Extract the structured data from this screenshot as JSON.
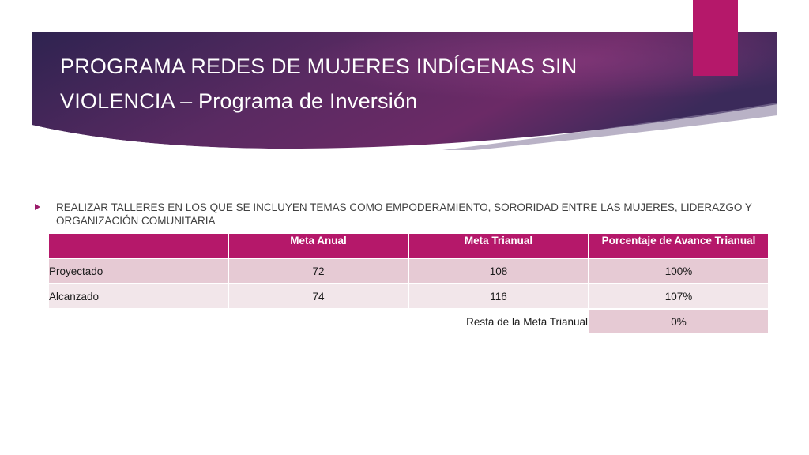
{
  "title": {
    "line1": "PROGRAMA REDES DE MUJERES INDÍGENAS SIN",
    "line2_part1": "VIOLENCIA",
    "line2_dash": "–",
    "line2_part2": "Programa de Inversión"
  },
  "bullet": {
    "text": "REALIZAR TALLERES EN LOS QUE SE INCLUYEN TEMAS COMO EMPODERAMIENTO, SORORIDAD ENTRE LAS MUJERES, LIDERAZGO Y ORGANIZACIÓN COMUNITARIA"
  },
  "table": {
    "headers": [
      "",
      "Meta Anual",
      "Meta Trianual",
      "Porcentaje de Avance Trianual"
    ],
    "rows": [
      [
        "Proyectado",
        "72",
        "108",
        "100%"
      ],
      [
        "Alcanzado",
        "74",
        "116",
        "107%"
      ]
    ],
    "resta_label": "Resta de la Meta Trianual",
    "resta_value": "0%"
  },
  "colors": {
    "accent": "#b5186a",
    "banner_dark": "#2b1f4f",
    "banner_mid": "#6e2a6a",
    "row_a": "#e6cad4",
    "row_b": "#f2e6ea"
  }
}
